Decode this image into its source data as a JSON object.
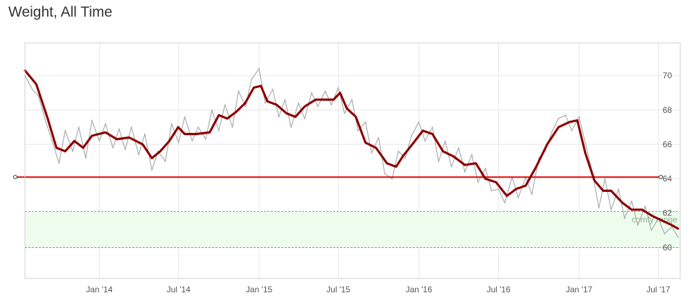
{
  "title": "Weight, All Time",
  "colors": {
    "trend": "#8b0000",
    "raw": "#aaaaaa",
    "goal_line": "#dd0000",
    "band_fill": "#eefcee",
    "band_border": "#7a9a7a",
    "grid": "#e6e6e6",
    "axis": "#cfcfcf"
  },
  "chart_data": {
    "type": "line",
    "title": "Weight, All Time",
    "xlabel": "",
    "ylabel": "",
    "ylim": [
      58.2,
      71.9
    ],
    "xlim": [
      "2013-07-15",
      "2017-08-20"
    ],
    "grid": true,
    "x_ticks": [
      {
        "date": "2014-01-01",
        "label": "Jan '14"
      },
      {
        "date": "2014-07-01",
        "label": "Jul '14"
      },
      {
        "date": "2015-01-01",
        "label": "Jan '15"
      },
      {
        "date": "2015-07-01",
        "label": "Jul '15"
      },
      {
        "date": "2016-01-01",
        "label": "Jan '16"
      },
      {
        "date": "2016-07-01",
        "label": "Jul '16"
      },
      {
        "date": "2017-01-01",
        "label": "Jan '17"
      },
      {
        "date": "2017-07-01",
        "label": "Jul '17"
      }
    ],
    "y_ticks": [
      60,
      62,
      64,
      66,
      68,
      70
    ],
    "goal_line": 64.1,
    "target_band": {
      "from": 60.0,
      "to": 62.1,
      "label": "comfy range"
    },
    "series": [
      {
        "role": "trend",
        "x": [
          "2013-07-15",
          "2013-08-10",
          "2013-09-05",
          "2013-09-25",
          "2013-10-15",
          "2013-11-05",
          "2013-11-25",
          "2013-12-15",
          "2014-01-15",
          "2014-02-10",
          "2014-03-10",
          "2014-04-10",
          "2014-05-01",
          "2014-05-20",
          "2014-06-10",
          "2014-06-30",
          "2014-07-15",
          "2014-08-10",
          "2014-09-10",
          "2014-10-01",
          "2014-10-20",
          "2014-11-10",
          "2014-11-30",
          "2014-12-20",
          "2015-01-05",
          "2015-01-20",
          "2015-02-10",
          "2015-03-05",
          "2015-03-25",
          "2015-04-15",
          "2015-05-10",
          "2015-06-01",
          "2015-06-20",
          "2015-07-05",
          "2015-07-20",
          "2015-08-10",
          "2015-09-01",
          "2015-09-25",
          "2015-10-20",
          "2015-11-10",
          "2015-11-25",
          "2015-12-20",
          "2016-01-10",
          "2016-02-01",
          "2016-02-25",
          "2016-03-20",
          "2016-04-15",
          "2016-05-10",
          "2016-06-01",
          "2016-06-25",
          "2016-07-20",
          "2016-08-10",
          "2016-09-01",
          "2016-09-25",
          "2016-10-20",
          "2016-11-15",
          "2016-12-10",
          "2016-12-28",
          "2017-01-15",
          "2017-02-05",
          "2017-02-25",
          "2017-03-15",
          "2017-04-10",
          "2017-05-01",
          "2017-05-25",
          "2017-06-20",
          "2017-07-15",
          "2017-08-01",
          "2017-08-15"
        ],
        "y": [
          70.3,
          69.5,
          67.5,
          65.8,
          65.6,
          66.2,
          65.8,
          66.5,
          66.7,
          66.3,
          66.4,
          66.0,
          65.2,
          65.6,
          66.2,
          67.0,
          66.6,
          66.6,
          66.7,
          67.7,
          67.5,
          67.9,
          68.4,
          69.3,
          69.4,
          68.5,
          68.3,
          67.8,
          67.6,
          68.2,
          68.6,
          68.6,
          68.6,
          69.0,
          68.1,
          67.6,
          66.1,
          65.8,
          64.9,
          64.7,
          65.3,
          66.1,
          66.8,
          66.6,
          65.6,
          65.3,
          64.8,
          64.9,
          64.0,
          63.8,
          63.0,
          63.4,
          63.6,
          64.7,
          66.0,
          67.0,
          67.3,
          67.4,
          65.5,
          63.9,
          63.3,
          63.3,
          62.6,
          62.2,
          62.2,
          61.8,
          61.5,
          61.3,
          61.1
        ]
      },
      {
        "role": "raw",
        "x": [
          "2013-07-15",
          "2013-08-01",
          "2013-08-15",
          "2013-09-01",
          "2013-09-15",
          "2013-10-01",
          "2013-10-15",
          "2013-11-01",
          "2013-11-15",
          "2013-12-01",
          "2013-12-15",
          "2014-01-01",
          "2014-01-15",
          "2014-02-01",
          "2014-02-15",
          "2014-03-01",
          "2014-03-15",
          "2014-04-01",
          "2014-04-15",
          "2014-05-01",
          "2014-05-15",
          "2014-06-01",
          "2014-06-15",
          "2014-07-01",
          "2014-07-15",
          "2014-08-01",
          "2014-08-15",
          "2014-09-01",
          "2014-09-15",
          "2014-10-01",
          "2014-10-15",
          "2014-11-01",
          "2014-11-15",
          "2014-12-01",
          "2014-12-15",
          "2015-01-01",
          "2015-01-15",
          "2015-02-01",
          "2015-02-15",
          "2015-03-01",
          "2015-03-15",
          "2015-04-01",
          "2015-04-15",
          "2015-05-01",
          "2015-05-15",
          "2015-06-01",
          "2015-06-15",
          "2015-07-01",
          "2015-07-15",
          "2015-08-01",
          "2015-08-15",
          "2015-09-01",
          "2015-09-15",
          "2015-10-01",
          "2015-10-15",
          "2015-11-01",
          "2015-11-15",
          "2015-12-01",
          "2015-12-15",
          "2016-01-01",
          "2016-01-15",
          "2016-02-01",
          "2016-02-15",
          "2016-03-01",
          "2016-03-15",
          "2016-04-01",
          "2016-04-15",
          "2016-05-01",
          "2016-05-15",
          "2016-06-01",
          "2016-06-15",
          "2016-07-01",
          "2016-07-15",
          "2016-08-01",
          "2016-08-15",
          "2016-09-01",
          "2016-09-15",
          "2016-10-01",
          "2016-10-15",
          "2016-11-01",
          "2016-11-15",
          "2016-12-01",
          "2016-12-15",
          "2017-01-01",
          "2017-01-15",
          "2017-02-01",
          "2017-02-15",
          "2017-03-01",
          "2017-03-15",
          "2017-04-01",
          "2017-04-15",
          "2017-05-01",
          "2017-05-15",
          "2017-06-01",
          "2017-06-15",
          "2017-07-01",
          "2017-07-15",
          "2017-08-01",
          "2017-08-15"
        ],
        "y": [
          70.0,
          69.2,
          68.8,
          67.3,
          66.2,
          64.9,
          66.8,
          65.6,
          67.0,
          65.2,
          67.4,
          66.2,
          67.2,
          65.8,
          66.9,
          65.7,
          67.0,
          65.4,
          66.6,
          64.5,
          65.6,
          65.0,
          67.2,
          66.1,
          67.6,
          66.2,
          67.0,
          66.3,
          68.0,
          66.8,
          68.3,
          67.0,
          69.1,
          68.2,
          69.8,
          70.4,
          68.4,
          69.2,
          67.6,
          68.6,
          67.0,
          68.4,
          67.5,
          69.0,
          68.2,
          69.1,
          68.3,
          69.3,
          67.8,
          68.6,
          66.8,
          67.3,
          65.5,
          66.4,
          64.3,
          64.0,
          65.6,
          65.2,
          66.5,
          67.3,
          66.2,
          67.0,
          65.0,
          66.2,
          64.7,
          65.8,
          64.4,
          65.4,
          63.8,
          64.6,
          63.3,
          63.4,
          62.6,
          64.1,
          62.9,
          64.1,
          63.1,
          65.2,
          65.6,
          66.8,
          67.5,
          67.7,
          66.8,
          67.6,
          66.1,
          64.3,
          62.3,
          64.0,
          62.2,
          63.4,
          61.7,
          62.7,
          61.3,
          62.4,
          61.0,
          61.7,
          60.8,
          61.2,
          60.6
        ]
      }
    ]
  }
}
